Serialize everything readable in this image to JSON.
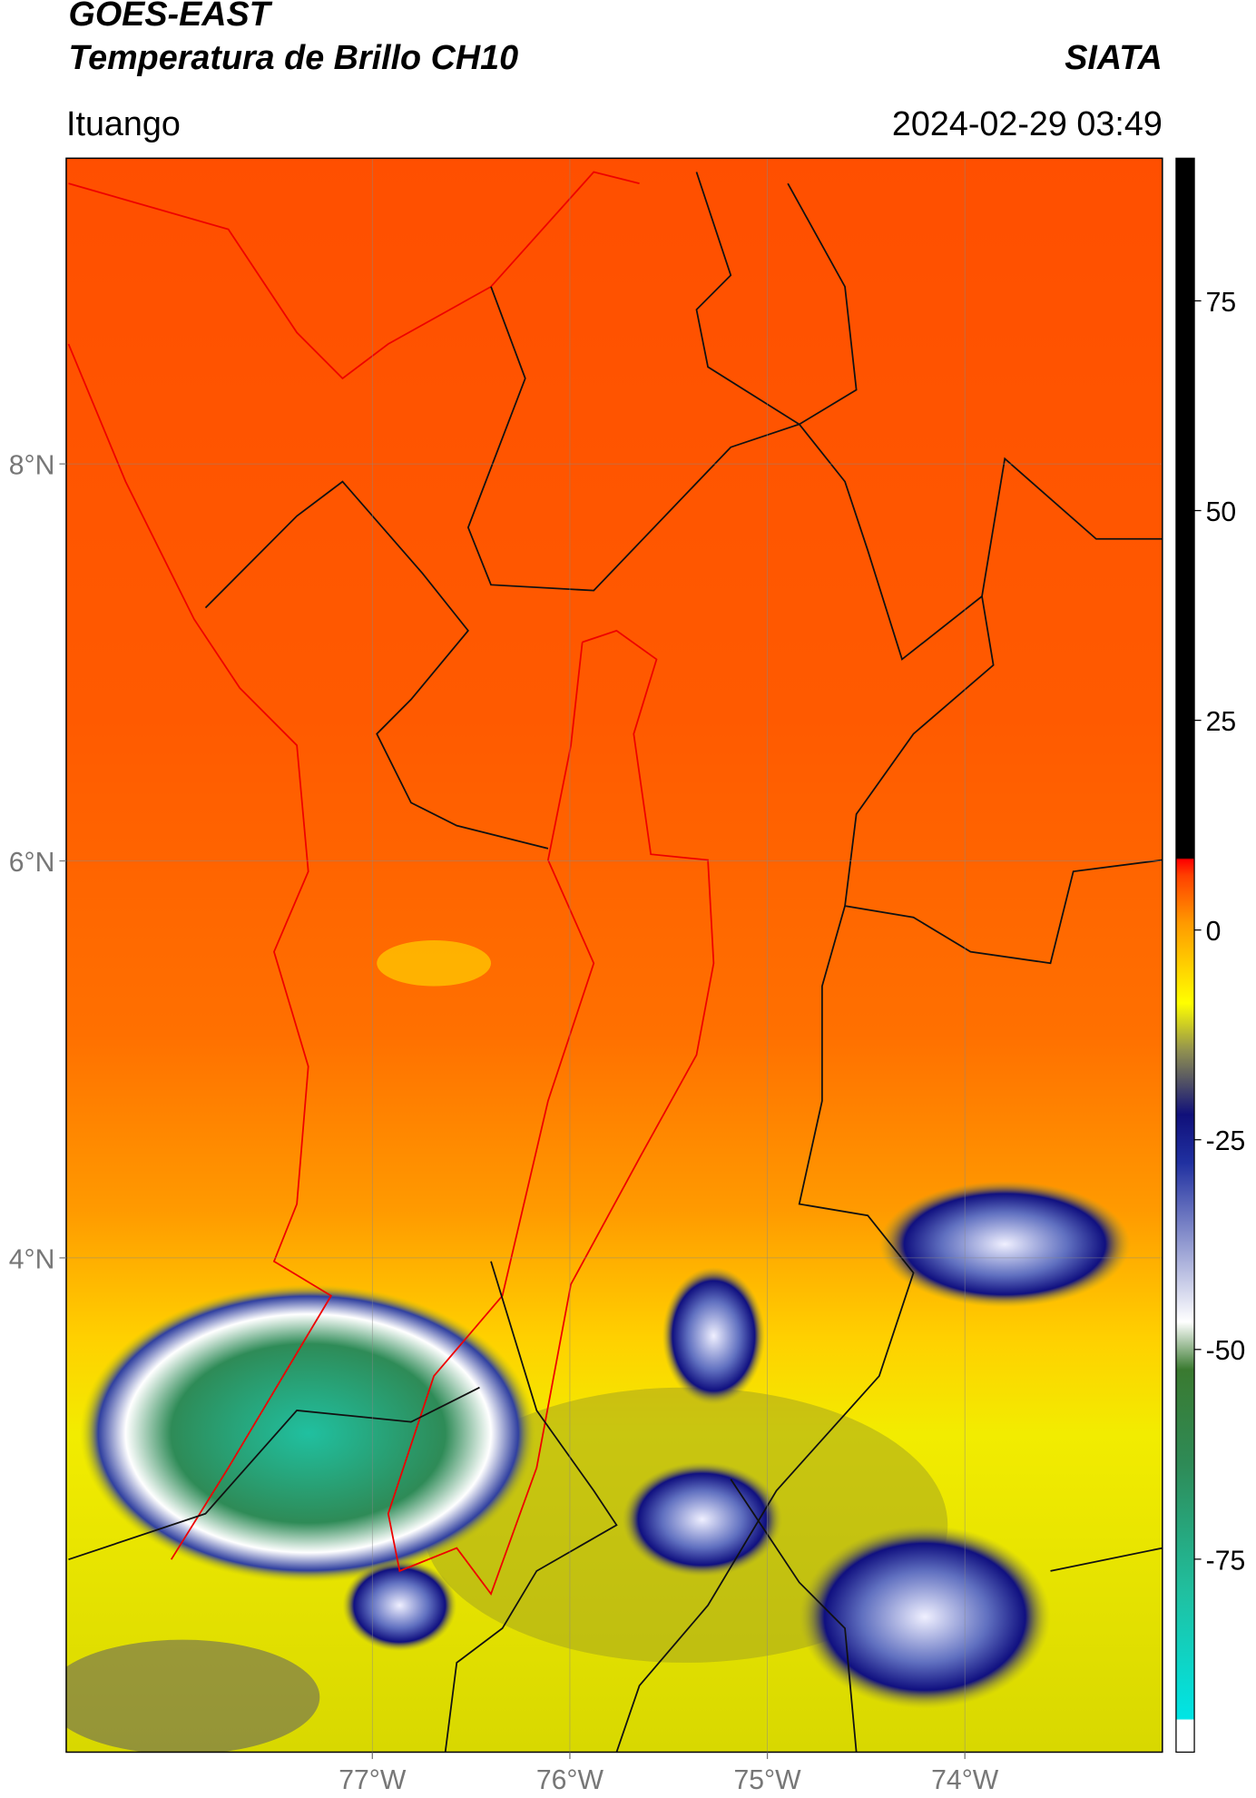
{
  "header": {
    "title": "GOES-EAST",
    "subtitle": "Temperatura de Brillo CH10",
    "org": "SIATA",
    "place": "Ituango",
    "datetime": "2024-02-29 03:49"
  },
  "map": {
    "lonlim": [
      -78.55,
      -73.0
    ],
    "latlim": [
      1.51,
      9.54
    ],
    "lonticks": [
      {
        "value": -77,
        "label": "77°W"
      },
      {
        "value": -76,
        "label": "76°W"
      },
      {
        "value": -75,
        "label": "75°W"
      },
      {
        "value": -74,
        "label": "74°W"
      }
    ],
    "latticks": [
      {
        "value": 8,
        "label": "8°N"
      },
      {
        "value": 6,
        "label": "6°N"
      },
      {
        "value": 4,
        "label": "4°N"
      }
    ],
    "grid": true
  },
  "colorbar": {
    "lim": [
      -98,
      92
    ],
    "ticks": [
      75,
      50,
      25,
      0,
      -25,
      -50,
      -75
    ]
  }
}
